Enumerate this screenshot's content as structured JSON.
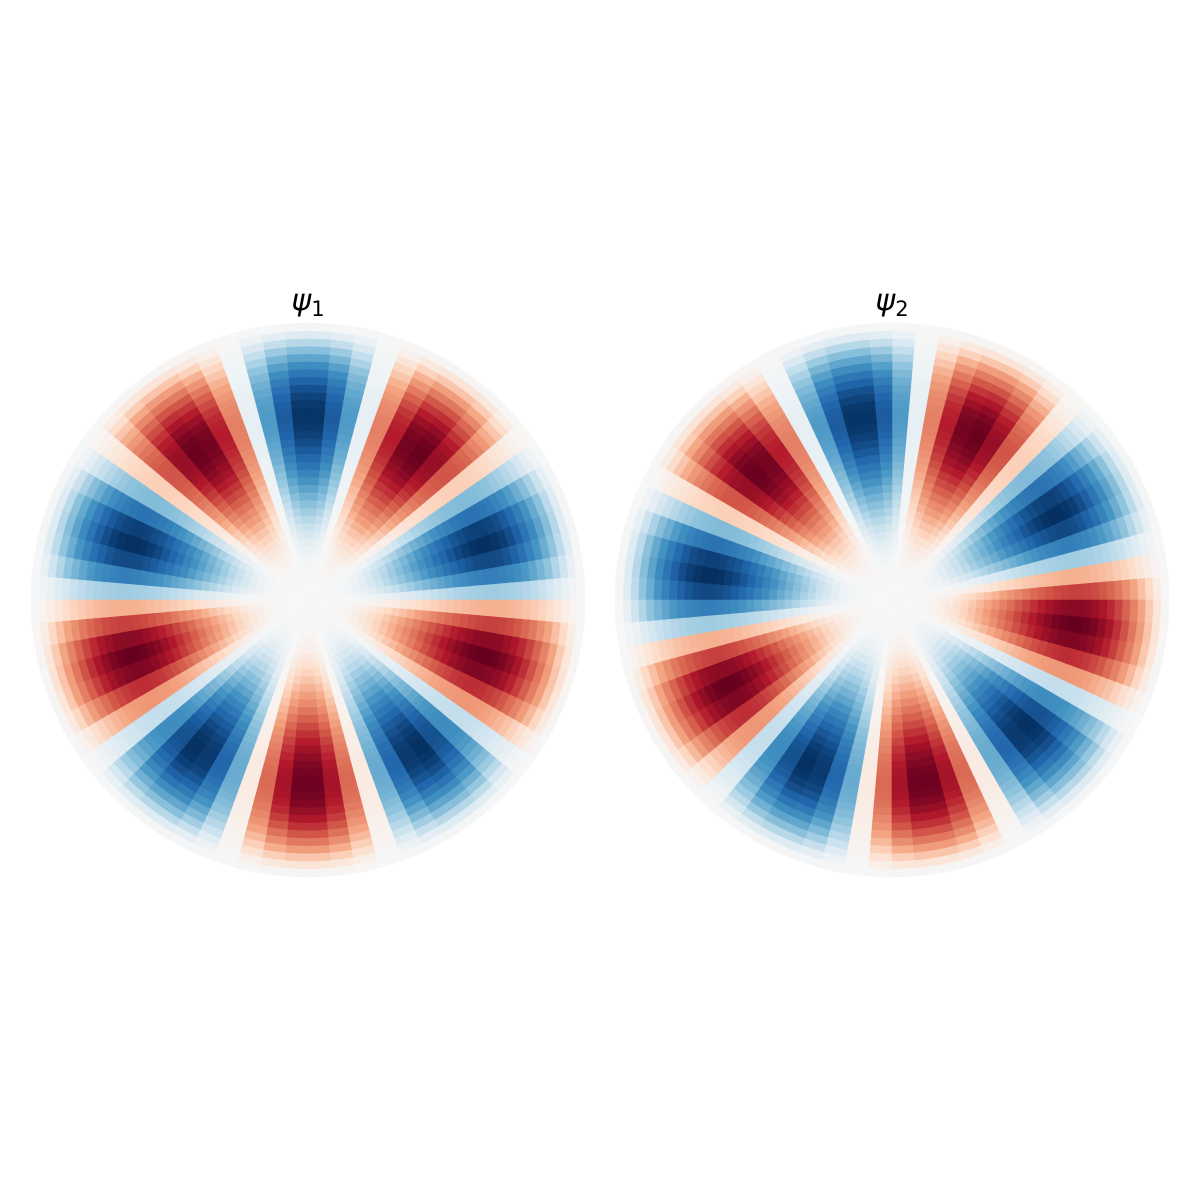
{
  "panels": [
    {
      "symbol": "ψ",
      "index": "1"
    },
    {
      "symbol": "ψ",
      "index": "2"
    }
  ]
}
